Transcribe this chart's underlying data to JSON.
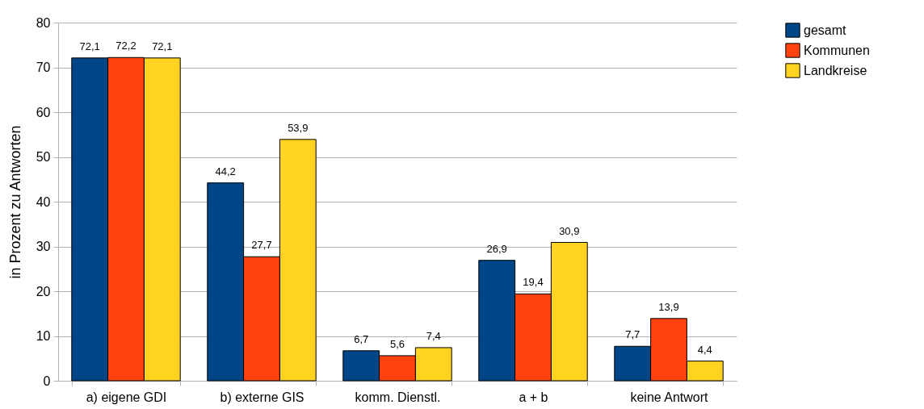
{
  "chart_data": {
    "type": "bar",
    "ylabel": "in Prozent zu Antworten",
    "categories": [
      "a) eigene GDI",
      "b) externe GIS",
      "komm. Dienstl.",
      "a + b",
      "keine Antwort"
    ],
    "series": [
      {
        "name": "gesamt",
        "color": "#004586",
        "values": [
          72.1,
          44.2,
          6.7,
          26.9,
          7.7
        ],
        "value_labels": [
          "72,1",
          "44,2",
          "6,7",
          "26,9",
          "7,7"
        ]
      },
      {
        "name": "Kommunen",
        "color": "#ff420e",
        "values": [
          72.2,
          27.7,
          5.6,
          19.4,
          13.9
        ],
        "value_labels": [
          "72,2",
          "27,7",
          "5,6",
          "19,4",
          "13,9"
        ]
      },
      {
        "name": "Landkreise",
        "color": "#ffd320",
        "values": [
          72.1,
          53.9,
          7.4,
          30.9,
          4.4
        ],
        "value_labels": [
          "72,1",
          "53,9",
          "7,4",
          "30,9",
          "4,4"
        ]
      }
    ],
    "ylim": [
      0,
      80
    ],
    "yticks": [
      0,
      10,
      20,
      30,
      40,
      50,
      60,
      70,
      80
    ],
    "grid": "y",
    "legend": "right"
  }
}
